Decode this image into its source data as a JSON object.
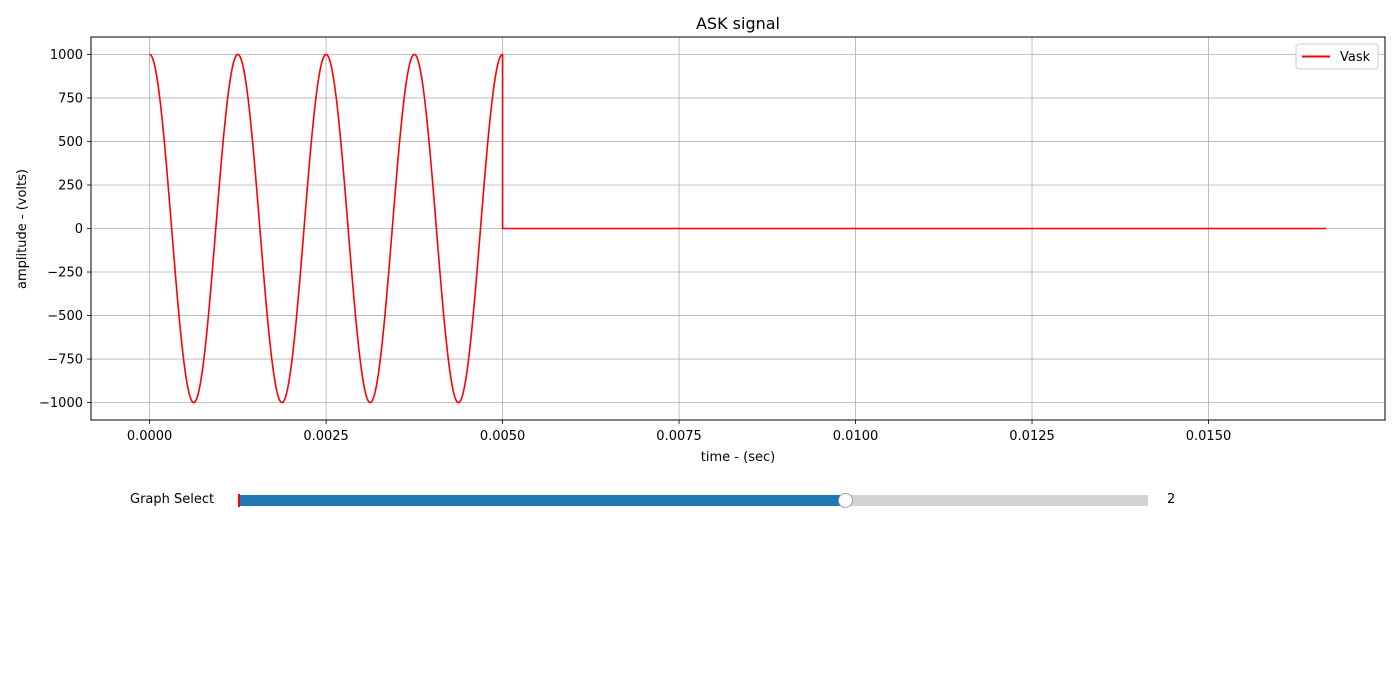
{
  "chart_data": {
    "type": "line",
    "title": "ASK signal",
    "xlabel": "time - (sec)",
    "ylabel": "amplitude - (volts)",
    "xlim": [
      -0.00083,
      0.0175
    ],
    "ylim": [
      -1100,
      1100
    ],
    "xticks": [
      0.0,
      0.0025,
      0.005,
      0.0075,
      0.01,
      0.0125,
      0.015
    ],
    "xtick_labels": [
      "0.0000",
      "0.0025",
      "0.0050",
      "0.0075",
      "0.0100",
      "0.0125",
      "0.0150"
    ],
    "yticks": [
      -1000,
      -750,
      -500,
      -250,
      0,
      250,
      500,
      750,
      1000
    ],
    "ytick_labels": [
      "−1000",
      "−750",
      "−500",
      "−250",
      "0",
      "250",
      "500",
      "750",
      "1000"
    ],
    "grid": true,
    "legend_position": "top-right",
    "series": [
      {
        "name": "Vask",
        "color": "#ff0000",
        "amplitude": 1000,
        "carrier_frequency_hz": 800,
        "on_interval": [
          0.0,
          0.005
        ],
        "x_end": 0.01667
      }
    ]
  },
  "slider": {
    "label": "Graph Select",
    "value_text": "2",
    "min": 0,
    "max": 3,
    "value": 2,
    "fill_color": "#1f77b4"
  }
}
